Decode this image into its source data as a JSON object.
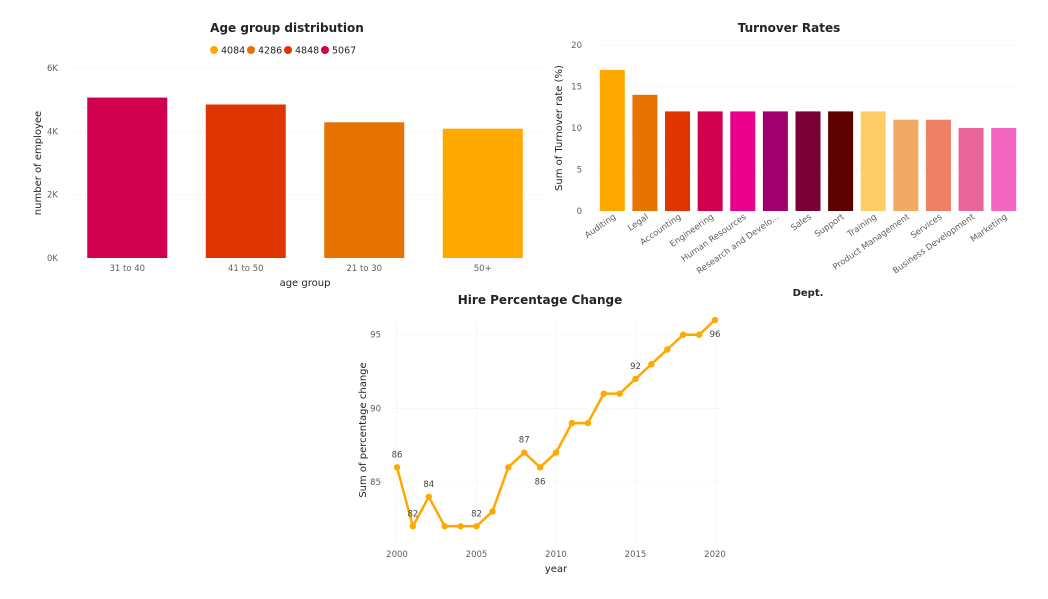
{
  "chart_data": [
    {
      "id": "age",
      "type": "bar",
      "title": "Age group distribution",
      "xlabel": "age group",
      "ylabel": "number of employee",
      "categories": [
        "31 to 40",
        "41 to 50",
        "21 to 30",
        "50+"
      ],
      "values": [
        5067,
        4848,
        4286,
        4084
      ],
      "colors": [
        "#D1004F",
        "#E03500",
        "#E67300",
        "#FFA800"
      ],
      "ylim": [
        0,
        6000
      ],
      "yticks": [
        0,
        2000,
        4000,
        6000
      ],
      "ytick_labels": [
        "0K",
        "2K",
        "4K",
        "6K"
      ],
      "legend": [
        {
          "label": "4084",
          "color": "#FFA800"
        },
        {
          "label": "4286",
          "color": "#E67300"
        },
        {
          "label": "4848",
          "color": "#E03500"
        },
        {
          "label": "5067",
          "color": "#D1004F"
        }
      ],
      "legend_position": "top-center",
      "grid": true
    },
    {
      "id": "turnover",
      "type": "bar",
      "title": "Turnover Rates",
      "xlabel": "Dept.",
      "ylabel": "Sum of Turnover rate (%)",
      "categories": [
        "Auditing",
        "Legal",
        "Accounting",
        "Engineering",
        "Human Resources",
        "Research and Develo...",
        "Sales",
        "Support",
        "Training",
        "Product Management",
        "Services",
        "Business Development",
        "Marketing"
      ],
      "values": [
        17,
        14,
        12,
        12,
        12,
        12,
        12,
        12,
        12,
        11,
        11,
        10,
        10
      ],
      "colors": [
        "#FFA800",
        "#E67300",
        "#E03500",
        "#D1004F",
        "#E8008A",
        "#A0006E",
        "#7A0033",
        "#5C0000",
        "#FFCC66",
        "#F0AA66",
        "#EE8066",
        "#E8659A",
        "#F566C0"
      ],
      "ylim": [
        0,
        20
      ],
      "yticks": [
        0,
        5,
        10,
        15,
        20
      ],
      "ytick_labels": [
        "0",
        "5",
        "10",
        "15",
        "20"
      ],
      "grid": true
    },
    {
      "id": "hire",
      "type": "line",
      "title": "Hire Percentage Change",
      "xlabel": "year",
      "ylabel": "Sum of percentage change",
      "x": [
        2000,
        2001,
        2002,
        2003,
        2004,
        2005,
        2006,
        2007,
        2008,
        2009,
        2010,
        2011,
        2012,
        2013,
        2014,
        2015,
        2016,
        2017,
        2018,
        2019,
        2020
      ],
      "values": [
        86,
        82,
        84,
        82,
        82,
        82,
        83,
        86,
        87,
        86,
        87,
        89,
        89,
        91,
        91,
        92,
        93,
        94,
        95,
        95,
        96
      ],
      "labels": [
        {
          "x": 2000,
          "text": "86",
          "pos": "above"
        },
        {
          "x": 2001,
          "text": "82",
          "pos": "above"
        },
        {
          "x": 2002,
          "text": "84",
          "pos": "above"
        },
        {
          "x": 2005,
          "text": "82",
          "pos": "above"
        },
        {
          "x": 2008,
          "text": "87",
          "pos": "above"
        },
        {
          "x": 2009,
          "text": "86",
          "pos": "below"
        },
        {
          "x": 2015,
          "text": "92",
          "pos": "above"
        },
        {
          "x": 2020,
          "text": "96",
          "pos": "below"
        }
      ],
      "color": "#FFA800",
      "xlim": [
        2000,
        2020
      ],
      "ylim": [
        81,
        96
      ],
      "xticks": [
        2000,
        2005,
        2010,
        2015,
        2020
      ],
      "yticks": [
        85,
        90,
        95
      ],
      "grid": true
    }
  ]
}
